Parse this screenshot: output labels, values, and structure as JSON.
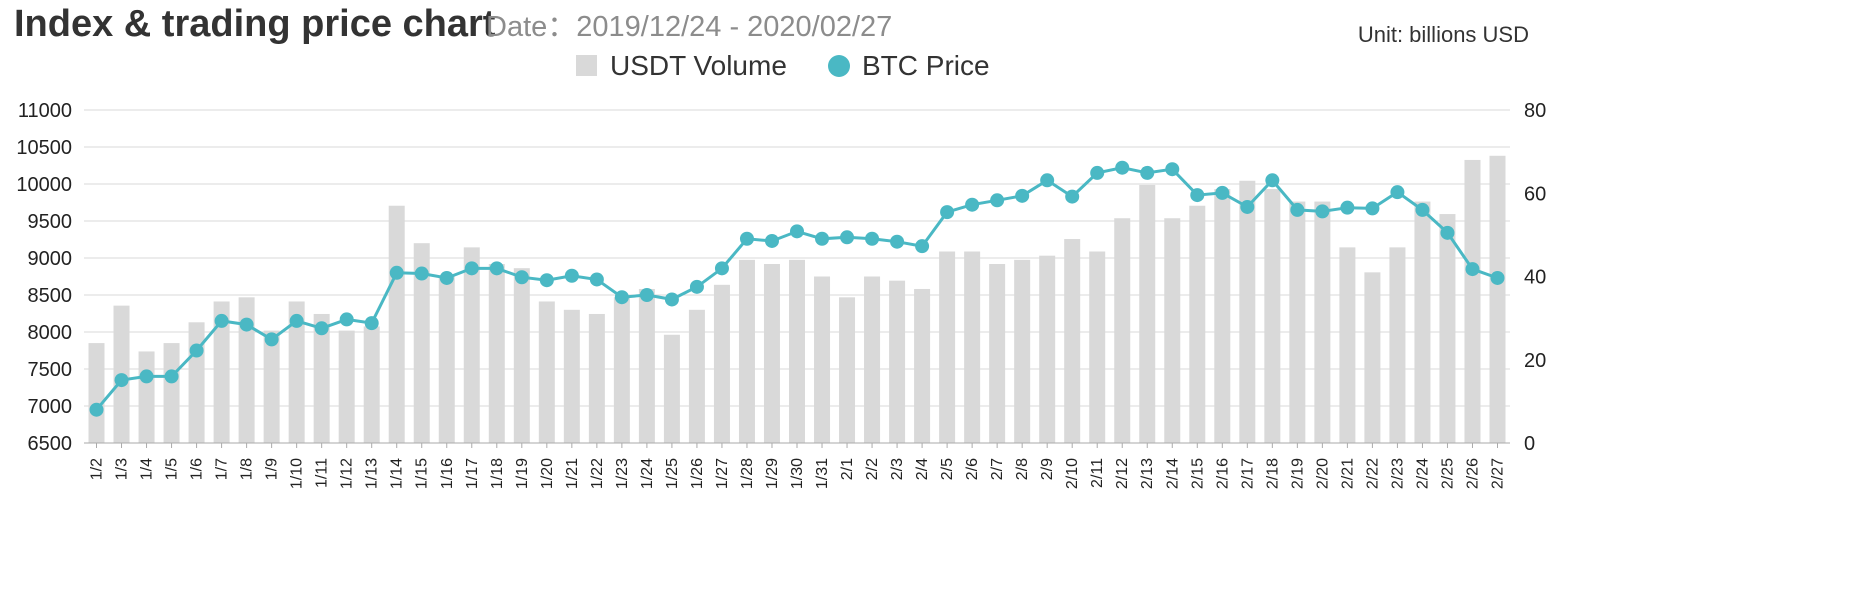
{
  "header": {
    "title": "Index & trading price chart",
    "date_range": "Date：2019/12/24 - 2020/02/27",
    "unit": "Unit: billions USD"
  },
  "colors": {
    "volume_bar": "#d9d9d9",
    "price_line": "#4ab8c4",
    "grid": "#d9d9d9",
    "axis": "#aaaaaa"
  },
  "chart_data": {
    "type": "bar",
    "title": "Index & trading price chart",
    "subtitle": "Date：2019/12/24 - 2020/02/27",
    "unit_label": "Unit: billions USD",
    "legend_position": "top-center",
    "grid": true,
    "categories": [
      "1/2",
      "1/3",
      "1/4",
      "1/5",
      "1/6",
      "1/7",
      "1/8",
      "1/9",
      "1/10",
      "1/11",
      "1/12",
      "1/13",
      "1/14",
      "1/15",
      "1/16",
      "1/17",
      "1/18",
      "1/19",
      "1/20",
      "1/21",
      "1/22",
      "1/23",
      "1/24",
      "1/25",
      "1/26",
      "1/27",
      "1/28",
      "1/29",
      "1/30",
      "1/31",
      "2/1",
      "2/2",
      "2/3",
      "2/4",
      "2/5",
      "2/6",
      "2/7",
      "2/8",
      "2/9",
      "2/10",
      "2/11",
      "2/12",
      "2/13",
      "2/14",
      "2/15",
      "2/16",
      "2/17",
      "2/18",
      "2/19",
      "2/20",
      "2/21",
      "2/22",
      "2/23",
      "2/24",
      "2/25",
      "2/26",
      "2/27"
    ],
    "series": [
      {
        "name": "USDT Volume",
        "type": "bar",
        "axis": "right",
        "values": [
          24,
          33,
          22,
          24,
          29,
          34,
          35,
          27,
          34,
          31,
          27,
          28,
          57,
          48,
          40,
          47,
          43,
          42,
          34,
          32,
          31,
          35,
          37,
          26,
          32,
          38,
          44,
          43,
          44,
          40,
          35,
          40,
          39,
          37,
          46,
          46,
          43,
          44,
          45,
          49,
          46,
          54,
          62,
          54,
          57,
          61,
          63,
          61,
          58,
          58,
          47,
          41,
          47,
          58,
          55,
          68,
          69
        ]
      },
      {
        "name": "BTC Price",
        "type": "line",
        "axis": "left",
        "values": [
          6950,
          7350,
          7400,
          7400,
          7750,
          8150,
          8100,
          7900,
          8150,
          8050,
          8170,
          8120,
          8800,
          8790,
          8730,
          8860,
          8860,
          8740,
          8700,
          8760,
          8710,
          8470,
          8500,
          8440,
          8610,
          8860,
          9260,
          9230,
          9360,
          9260,
          9280,
          9260,
          9220,
          9160,
          9620,
          9720,
          9780,
          9840,
          10050,
          9830,
          10150,
          10220,
          10150,
          10200,
          9850,
          9880,
          9690,
          10050,
          9650,
          9630,
          9680,
          9670,
          9890,
          9650,
          9340,
          8850,
          8730
        ]
      }
    ],
    "y_left": {
      "range": [
        6500,
        11000
      ],
      "ticks": [
        "6500",
        "7000",
        "7500",
        "8000",
        "8500",
        "9000",
        "9500",
        "10000",
        "10500",
        "11000"
      ]
    },
    "y_right": {
      "range": [
        0,
        80
      ],
      "ticks": [
        "0",
        "20",
        "40",
        "60",
        "80"
      ]
    }
  }
}
